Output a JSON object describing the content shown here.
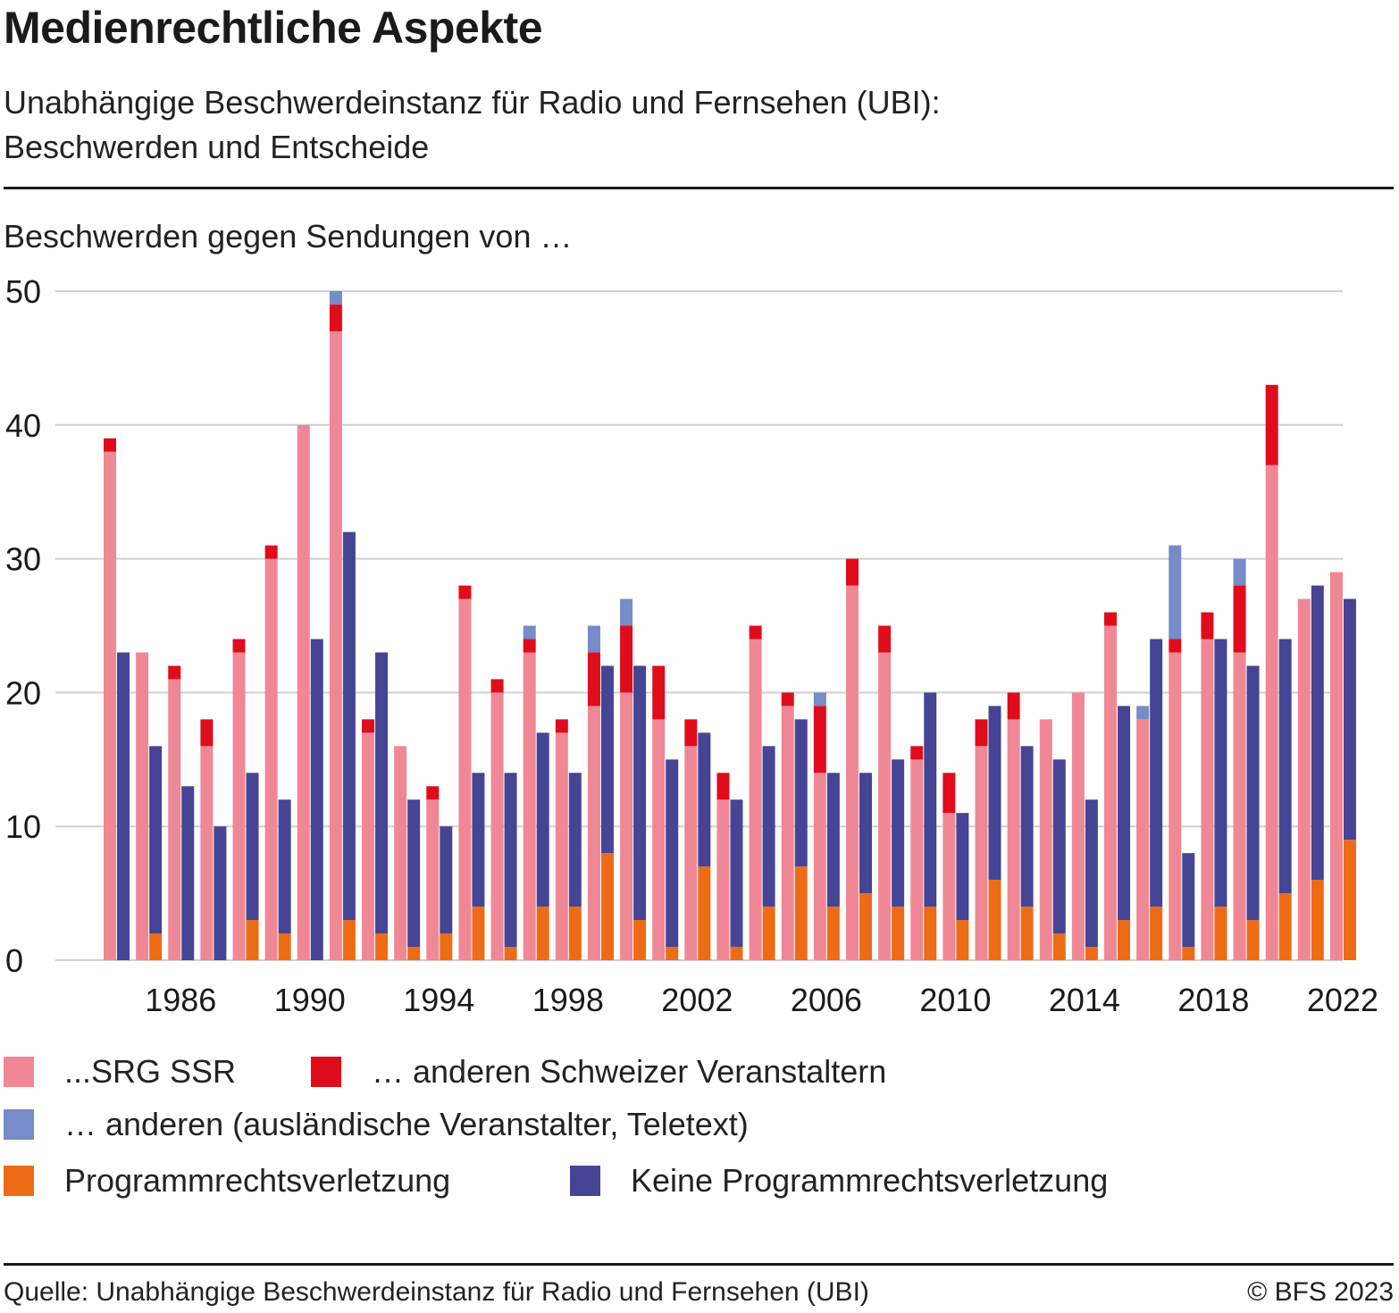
{
  "header": {
    "title": "Medienrechtliche Aspekte",
    "subtitle_line1": "Unabhängige Beschwerdeinstanz für Radio und Fernsehen (UBI):",
    "subtitle_line2": "Beschwerden und Entscheide"
  },
  "footer": {
    "source": "Quelle: Unabhängige Beschwerdeinstanz für Radio und Fernsehen (UBI)",
    "copyright": "© BFS 2023"
  },
  "chart_data": {
    "type": "bar",
    "subtype": "grouped-stacked",
    "title": "Medienrechtliche Aspekte",
    "subtitle": "Unabhängige Beschwerdeinstanz für Radio und Fernsehen (UBI): Beschwerden und Entscheide",
    "ylabel": "Beschwerden gegen Sendungen von …",
    "xlabel": "",
    "ylim": [
      0,
      50
    ],
    "yticks": [
      0,
      10,
      20,
      30,
      40,
      50
    ],
    "grid": true,
    "legend_position": "bottom",
    "xtick_labels": [
      "1986",
      "1990",
      "1994",
      "1998",
      "2002",
      "2006",
      "2010",
      "2014",
      "2018",
      "2022"
    ],
    "categories": [
      1984,
      1985,
      1986,
      1987,
      1988,
      1989,
      1990,
      1991,
      1992,
      1993,
      1994,
      1995,
      1996,
      1997,
      1998,
      1999,
      2000,
      2001,
      2002,
      2003,
      2004,
      2005,
      2006,
      2007,
      2008,
      2009,
      2010,
      2011,
      2012,
      2013,
      2014,
      2015,
      2016,
      2017,
      2018,
      2019,
      2020,
      2021,
      2022
    ],
    "stacks": [
      {
        "name": "Beschwerden",
        "series": [
          {
            "name": "...SRG SSR",
            "color": "#f08794",
            "values": [
              38,
              23,
              21,
              16,
              23,
              30,
              40,
              47,
              17,
              16,
              12,
              27,
              20,
              23,
              17,
              19,
              20,
              18,
              16,
              12,
              24,
              19,
              14,
              28,
              23,
              15,
              11,
              16,
              18,
              18,
              20,
              25,
              18,
              23,
              24,
              23,
              37,
              27,
              29
            ]
          },
          {
            "name": "… anderen Schweizer Veranstaltern",
            "color": "#e00c1c",
            "values": [
              1,
              0,
              1,
              2,
              1,
              1,
              0,
              2,
              1,
              0,
              1,
              1,
              1,
              1,
              1,
              4,
              5,
              4,
              2,
              2,
              1,
              1,
              5,
              2,
              2,
              1,
              3,
              2,
              2,
              0,
              0,
              1,
              0,
              1,
              2,
              5,
              6,
              0,
              0
            ]
          },
          {
            "name": "… anderen (ausländische Veranstalter, Teletext)",
            "color": "#768bc7",
            "values": [
              0,
              0,
              0,
              0,
              0,
              0,
              0,
              1,
              0,
              0,
              0,
              0,
              0,
              1,
              0,
              2,
              2,
              0,
              0,
              0,
              0,
              0,
              1,
              0,
              0,
              0,
              0,
              0,
              0,
              0,
              0,
              0,
              1,
              7,
              0,
              2,
              0,
              0,
              0
            ]
          }
        ]
      },
      {
        "name": "Entscheide",
        "series": [
          {
            "name": "Programmrechtsverletzung",
            "color": "#ee6b15",
            "values": [
              0,
              2,
              0,
              0,
              3,
              2,
              0,
              3,
              2,
              1,
              2,
              4,
              1,
              4,
              4,
              8,
              3,
              1,
              7,
              1,
              4,
              7,
              4,
              5,
              4,
              4,
              3,
              6,
              4,
              2,
              1,
              3,
              4,
              1,
              4,
              3,
              5,
              6,
              9
            ]
          },
          {
            "name": "Keine Programmrechtsverletzung",
            "color": "#454495",
            "values": [
              23,
              14,
              13,
              10,
              11,
              10,
              24,
              29,
              21,
              11,
              8,
              10,
              13,
              13,
              10,
              14,
              19,
              14,
              10,
              11,
              12,
              11,
              10,
              9,
              11,
              16,
              8,
              13,
              12,
              13,
              11,
              16,
              20,
              7,
              20,
              19,
              19,
              22,
              18
            ]
          }
        ]
      }
    ]
  },
  "legend": {
    "items": [
      {
        "label": "...SRG SSR",
        "color": "#f08794"
      },
      {
        "label": "… anderen Schweizer Veranstaltern",
        "color": "#e00c1c"
      },
      {
        "label": "… anderen (ausländische Veranstalter, Teletext)",
        "color": "#768bc7"
      },
      {
        "label": "Programmrechtsverletzung",
        "color": "#ee6b15"
      },
      {
        "label": "Keine Programmrechtsverletzung",
        "color": "#454495"
      }
    ]
  }
}
